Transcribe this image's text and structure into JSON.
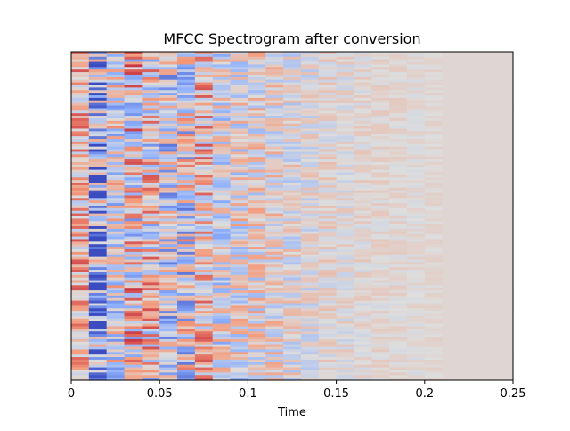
{
  "chart_data": {
    "type": "heatmap",
    "title": "MFCC Spectrogram after conversion",
    "xlabel": "Time",
    "ylabel": "",
    "xlim": [
      0,
      0.25
    ],
    "xticks": [
      0,
      0.05,
      0.1,
      0.15,
      0.2,
      0.25
    ],
    "xtick_labels": [
      "0",
      "0.05",
      "0.1",
      "0.15",
      "0.2",
      "0.25"
    ],
    "y_ticks_shown": false,
    "colormap": "coolwarm",
    "color_range": [
      -1,
      1
    ],
    "n_frames": 25,
    "n_coefficients": 128,
    "frame_duration": 0.01,
    "active_frames": 21,
    "column_amplitudes": [
      0.5,
      0.9,
      0.6,
      0.75,
      0.7,
      0.65,
      0.7,
      0.55,
      0.5,
      0.48,
      0.45,
      0.38,
      0.32,
      0.26,
      0.2,
      0.17,
      0.14,
      0.12,
      0.1,
      0.08,
      0.06,
      0.0,
      0.0,
      0.0,
      0.0
    ],
    "column_bias": [
      0.25,
      -0.45,
      -0.05,
      0.1,
      0.05,
      -0.15,
      -0.1,
      0.2,
      -0.05,
      0.0,
      0.05,
      0.05,
      0.0,
      0.0,
      0.05,
      0.02,
      0.05,
      0.05,
      0.05,
      0.03,
      0.05,
      0.05,
      0.05,
      0.05,
      0.05
    ],
    "fill_value": 0.05
  },
  "colors": {
    "axes_edge": "#000000",
    "cold": "#3b4cc0",
    "neutral": "#dddddd",
    "warm": "#b40426"
  }
}
